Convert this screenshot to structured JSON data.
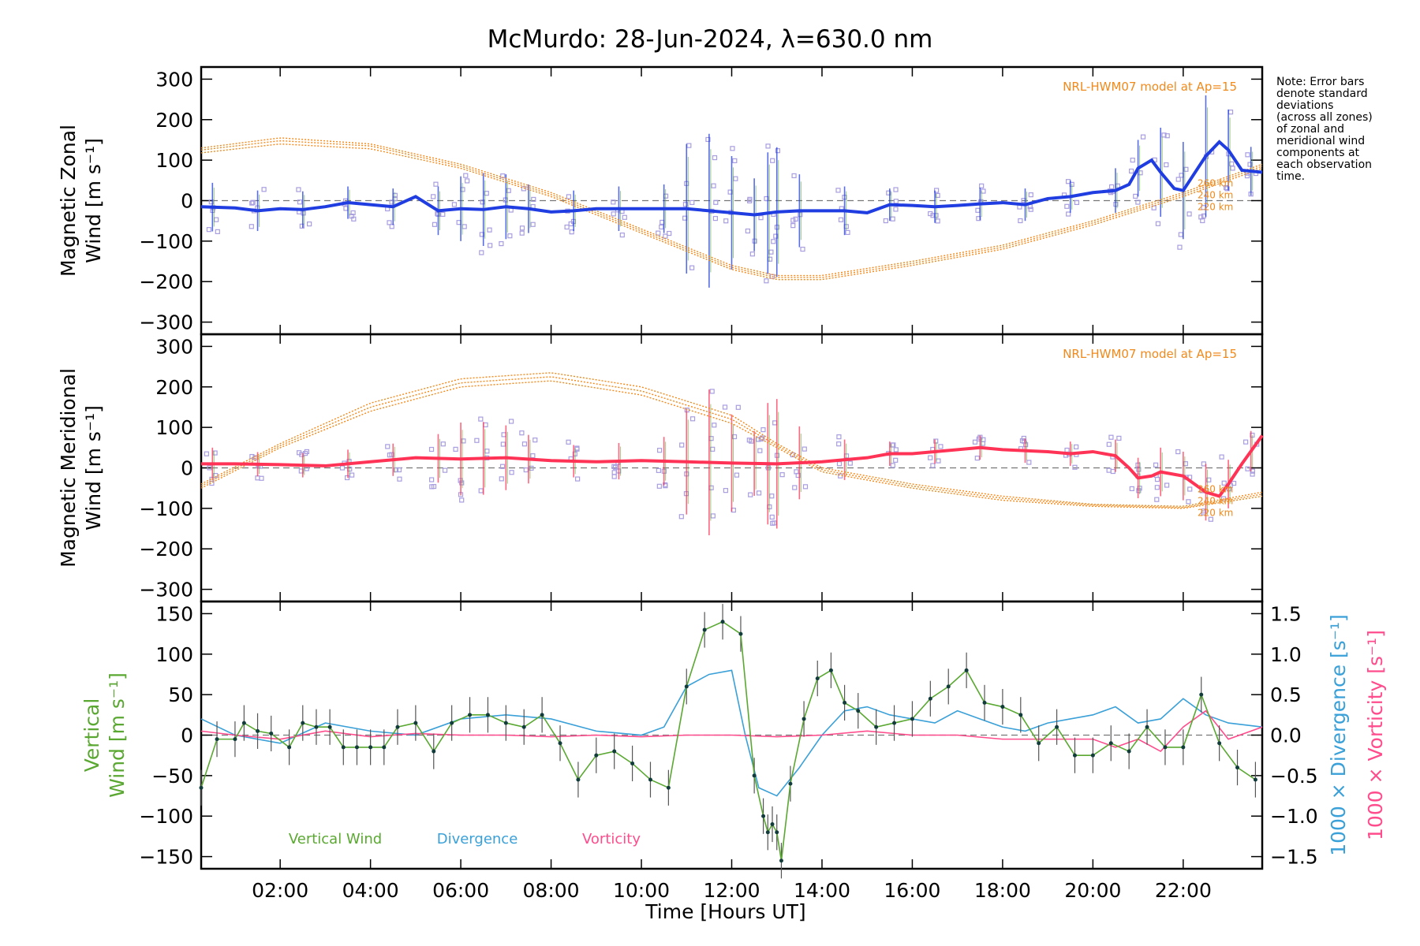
{
  "title": "McMurdo: 28-Jun-2024, λ=630.0 nm",
  "note_lines": [
    "Note: Error bars",
    "denote standard",
    "deviations",
    "(across all zones)",
    "of zonal and",
    "meridional wind",
    "components at",
    "each observation",
    "time."
  ],
  "x_axis": {
    "label": "Time [Hours UT]",
    "range_hours": [
      0.25,
      23.75
    ],
    "tick_hours": [
      2,
      4,
      6,
      8,
      10,
      12,
      14,
      16,
      18,
      20,
      22
    ],
    "tick_labels": [
      "02:00",
      "04:00",
      "06:00",
      "08:00",
      "10:00",
      "12:00",
      "14:00",
      "16:00",
      "18:00",
      "20:00",
      "22:00"
    ]
  },
  "model_label": "NRL-HWM07 model at Ap=15",
  "altitude_labels": [
    "260 km",
    "240 km",
    "220 km"
  ],
  "colors": {
    "zonal": "#1f3de0",
    "meridional": "#ff3355",
    "model": "#f08a1c",
    "zone_points": "#a89ee0",
    "vertical": "#5aa832",
    "divergence": "#3aa0d8",
    "vorticity": "#ff4c8c",
    "errbar": "#555555",
    "zero": "#777777"
  },
  "chart_data": [
    {
      "type": "line",
      "name": "zonal-panel",
      "ylabel": [
        "Magnetic Zonal",
        "Wind [m s⁻¹]"
      ],
      "ylim": [
        -330,
        330
      ],
      "yticks": [
        -300,
        -200,
        -100,
        0,
        100,
        200,
        300
      ],
      "ytick_labels": [
        "−300",
        "−200",
        "−100",
        "0",
        "100",
        "200",
        "300"
      ],
      "series": [
        {
          "name": "",
          "x": [
            0.25,
            1.0,
            1.5,
            2.0,
            2.5,
            3.0,
            3.5,
            4.0,
            4.5,
            5.0,
            5.5,
            6.0,
            6.5,
            7.0,
            7.5,
            8.0,
            8.5,
            9.0,
            10.0,
            11.0,
            11.5,
            12.0,
            12.5,
            13.0,
            13.5,
            14.0,
            14.5,
            15.0,
            15.5,
            16.0,
            16.5,
            17.0,
            17.5,
            18.0,
            18.5,
            19.0,
            19.5,
            20.0,
            20.5,
            20.8,
            21.0,
            21.3,
            21.5,
            21.8,
            22.0,
            22.5,
            22.8,
            23.0,
            23.3,
            23.75
          ],
          "y": [
            -15,
            -18,
            -25,
            -20,
            -22,
            -15,
            -5,
            -10,
            -15,
            10,
            -25,
            -20,
            -22,
            -15,
            -20,
            -28,
            -25,
            -20,
            -20,
            -20,
            -25,
            -30,
            -35,
            -28,
            -25,
            -25,
            -25,
            -30,
            -10,
            -12,
            -15,
            -12,
            -8,
            -5,
            -10,
            5,
            10,
            20,
            25,
            40,
            80,
            100,
            70,
            30,
            25,
            110,
            145,
            125,
            75,
            70
          ]
        }
      ],
      "model_curves": [
        {
          "name": "260 km",
          "x": [
            0.25,
            2,
            4,
            6,
            8,
            10,
            12,
            13,
            14,
            16,
            18,
            20,
            22,
            23.75
          ],
          "y": [
            130,
            155,
            140,
            90,
            20,
            -70,
            -160,
            -185,
            -185,
            -150,
            -110,
            -50,
            20,
            90
          ]
        },
        {
          "name": "240 km",
          "x": [
            0.25,
            2,
            4,
            6,
            8,
            10,
            12,
            13,
            14,
            16,
            18,
            20,
            22,
            23.75
          ],
          "y": [
            125,
            148,
            135,
            85,
            15,
            -75,
            -165,
            -190,
            -190,
            -155,
            -115,
            -55,
            15,
            85
          ]
        },
        {
          "name": "220 km",
          "x": [
            0.25,
            2,
            4,
            6,
            8,
            10,
            12,
            13,
            14,
            16,
            18,
            20,
            22,
            23.75
          ],
          "y": [
            118,
            140,
            128,
            80,
            10,
            -80,
            -170,
            -195,
            -195,
            -160,
            -120,
            -60,
            10,
            80
          ]
        }
      ],
      "error_bars": {
        "x": [
          0.5,
          1.5,
          2.5,
          3.5,
          4.5,
          5.5,
          6.0,
          6.5,
          7.0,
          7.5,
          8.5,
          9.5,
          10.5,
          11.0,
          11.5,
          12.0,
          12.5,
          12.8,
          13.0,
          13.5,
          14.5,
          15.5,
          16.5,
          17.5,
          18.5,
          19.5,
          20.5,
          21.0,
          21.5,
          22.0,
          22.5,
          23.0,
          23.5
        ],
        "half": [
          60,
          50,
          45,
          40,
          45,
          60,
          80,
          90,
          80,
          60,
          50,
          55,
          60,
          160,
          190,
          140,
          90,
          150,
          160,
          90,
          60,
          40,
          40,
          40,
          40,
          40,
          55,
          70,
          110,
          120,
          150,
          100,
          60
        ]
      }
    },
    {
      "type": "line",
      "name": "meridional-panel",
      "ylabel": [
        "Magnetic Meridional",
        "Wind [m s⁻¹]"
      ],
      "ylim": [
        -330,
        330
      ],
      "yticks": [
        -300,
        -200,
        -100,
        0,
        100,
        200,
        300
      ],
      "ytick_labels": [
        "−300",
        "−200",
        "−100",
        "0",
        "100",
        "200",
        "300"
      ],
      "series": [
        {
          "name": "",
          "x": [
            0.25,
            1,
            2,
            3,
            4,
            5,
            6,
            7,
            8,
            9,
            10,
            11,
            12,
            13,
            14,
            15,
            15.5,
            16,
            17,
            17.5,
            18,
            19,
            19.5,
            20,
            20.5,
            20.8,
            21,
            21.3,
            21.5,
            22,
            22.5,
            22.8,
            23,
            23.3,
            23.75
          ],
          "y": [
            10,
            10,
            8,
            5,
            15,
            25,
            22,
            25,
            18,
            15,
            18,
            15,
            12,
            10,
            15,
            25,
            35,
            35,
            45,
            50,
            45,
            40,
            35,
            40,
            30,
            0,
            -25,
            -20,
            -10,
            -20,
            -60,
            -70,
            -40,
            10,
            80
          ]
        }
      ],
      "model_curves": [
        {
          "name": "260 km",
          "x": [
            0.25,
            2,
            4,
            6,
            8,
            10,
            12,
            13,
            14,
            16,
            18,
            20,
            22,
            23.75
          ],
          "y": [
            -40,
            60,
            160,
            220,
            235,
            200,
            130,
            60,
            0,
            -40,
            -70,
            -90,
            -95,
            -60
          ]
        },
        {
          "name": "240 km",
          "x": [
            0.25,
            2,
            4,
            6,
            8,
            10,
            12,
            13,
            14,
            16,
            18,
            20,
            22,
            23.75
          ],
          "y": [
            -45,
            55,
            150,
            210,
            225,
            190,
            120,
            55,
            -5,
            -45,
            -75,
            -92,
            -98,
            -65
          ]
        },
        {
          "name": "220 km",
          "x": [
            0.25,
            2,
            4,
            6,
            8,
            10,
            12,
            13,
            14,
            16,
            18,
            20,
            22,
            23.75
          ],
          "y": [
            -50,
            50,
            140,
            200,
            215,
            180,
            110,
            50,
            -10,
            -50,
            -80,
            -95,
            -100,
            -70
          ]
        }
      ],
      "error_bars": {
        "x": [
          0.5,
          1.5,
          2.5,
          3.5,
          4.5,
          5.5,
          6.0,
          6.5,
          7.0,
          7.5,
          8.5,
          9.5,
          10.5,
          11.0,
          11.5,
          12.0,
          12.5,
          12.8,
          13.0,
          13.5,
          14.5,
          15.5,
          16.5,
          17.5,
          18.5,
          19.5,
          20.5,
          21.0,
          21.5,
          22.0,
          22.5,
          23.0,
          23.5
        ],
        "half": [
          40,
          30,
          30,
          35,
          40,
          60,
          90,
          90,
          80,
          60,
          40,
          45,
          60,
          130,
          180,
          120,
          80,
          150,
          160,
          90,
          50,
          30,
          30,
          30,
          30,
          30,
          40,
          50,
          60,
          60,
          70,
          60,
          50
        ]
      }
    },
    {
      "type": "line",
      "name": "vertical-panel",
      "ylabel": [
        "Vertical",
        "Wind [m s⁻¹]"
      ],
      "ylim": [
        -165,
        165
      ],
      "yticks": [
        -150,
        -100,
        -50,
        0,
        50,
        100,
        150
      ],
      "ytick_labels": [
        "−150",
        "−100",
        "−50",
        "0",
        "50",
        "100",
        "150"
      ],
      "y2label_div": "1000 × Divergence [s⁻¹]",
      "y2label_vort": "1000 × Vorticity [s⁻¹]",
      "y2lim": [
        -1.65,
        1.65
      ],
      "y2ticks": [
        -1.5,
        -1.0,
        -0.5,
        0.0,
        0.5,
        1.0,
        1.5
      ],
      "y2tick_labels": [
        "−1.5",
        "−1.0",
        "−0.5",
        "0.0",
        "0.5",
        "1.0",
        "1.5"
      ],
      "series": [
        {
          "name": "Vertical Wind",
          "x": [
            0.25,
            0.6,
            1.0,
            1.2,
            1.5,
            1.8,
            2.2,
            2.5,
            2.8,
            3.1,
            3.4,
            3.7,
            4.0,
            4.3,
            4.6,
            5.0,
            5.4,
            5.8,
            6.2,
            6.6,
            7.0,
            7.4,
            7.8,
            8.2,
            8.6,
            9.0,
            9.4,
            9.8,
            10.2,
            10.6,
            11.0,
            11.4,
            11.8,
            12.2,
            12.5,
            12.7,
            12.8,
            12.9,
            13.0,
            13.1,
            13.3,
            13.6,
            13.9,
            14.2,
            14.5,
            14.8,
            15.2,
            15.6,
            16.0,
            16.4,
            16.8,
            17.2,
            17.6,
            18.0,
            18.4,
            18.8,
            19.2,
            19.6,
            20.0,
            20.4,
            20.8,
            21.2,
            21.6,
            22.0,
            22.4,
            22.8,
            23.2,
            23.6
          ],
          "y": [
            -65,
            -5,
            -5,
            15,
            5,
            2,
            -15,
            15,
            10,
            10,
            -15,
            -15,
            -15,
            -15,
            10,
            15,
            -20,
            15,
            25,
            25,
            15,
            10,
            25,
            -10,
            -55,
            -25,
            -20,
            -35,
            -55,
            -65,
            60,
            130,
            140,
            125,
            -50,
            -100,
            -120,
            -110,
            -120,
            -155,
            -60,
            20,
            70,
            80,
            40,
            30,
            10,
            15,
            20,
            45,
            60,
            80,
            40,
            35,
            25,
            -10,
            10,
            -25,
            -25,
            -10,
            -20,
            10,
            -15,
            -15,
            50,
            -10,
            -40,
            -55
          ]
        },
        {
          "name": "Divergence",
          "x": [
            0.25,
            1,
            2,
            3,
            4,
            5,
            6,
            7,
            8,
            9,
            10,
            10.5,
            11,
            11.5,
            12,
            12.3,
            12.6,
            13,
            13.5,
            14,
            14.5,
            15,
            15.5,
            16,
            16.5,
            17,
            17.5,
            18,
            18.5,
            19,
            19.5,
            20,
            20.5,
            21,
            21.5,
            22,
            22.5,
            23,
            23.75
          ],
          "y": [
            0.2,
            0.0,
            -0.1,
            0.15,
            0.05,
            0.0,
            0.2,
            0.25,
            0.2,
            0.05,
            0.0,
            0.1,
            0.6,
            0.75,
            0.8,
            0.0,
            -0.65,
            -0.75,
            -0.4,
            0.0,
            0.3,
            0.35,
            0.25,
            0.2,
            0.15,
            0.3,
            0.2,
            0.1,
            0.05,
            0.15,
            0.2,
            0.25,
            0.35,
            0.15,
            0.2,
            0.45,
            0.25,
            0.15,
            0.1
          ]
        },
        {
          "name": "Vorticity",
          "x": [
            0.25,
            1,
            2,
            3,
            4,
            5,
            6,
            7,
            8,
            9,
            10,
            11,
            12,
            13,
            14,
            15,
            16,
            17,
            18,
            19,
            20,
            20.5,
            21,
            21.5,
            22,
            22.5,
            23,
            23.75
          ],
          "y": [
            0.05,
            0.0,
            -0.05,
            0.05,
            -0.02,
            0.02,
            0.0,
            0.0,
            -0.02,
            0.0,
            -0.02,
            0.0,
            0.0,
            -0.02,
            0.0,
            0.05,
            0.0,
            0.0,
            -0.05,
            -0.05,
            -0.05,
            -0.15,
            -0.05,
            -0.2,
            0.1,
            0.3,
            -0.05,
            0.1
          ]
        }
      ],
      "legend": [
        "Vertical Wind",
        "Divergence",
        "Vorticity"
      ],
      "error_half": 22
    }
  ]
}
